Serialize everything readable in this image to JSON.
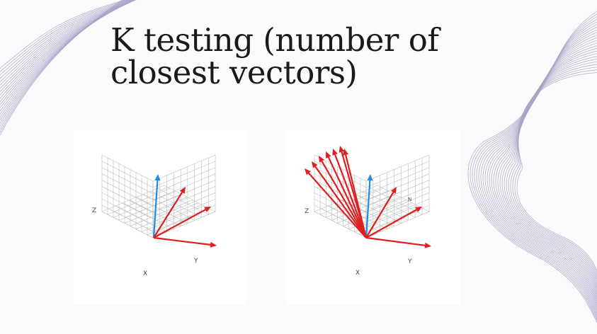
{
  "slide": {
    "title_line1": "K testing (number of",
    "title_line2": "closest vectors)"
  },
  "figures": [
    {
      "name": "left-3d-vectors",
      "axis_labels": {
        "z": "Z",
        "x": "X",
        "y": "Y"
      },
      "blue_vector_count": 1,
      "red_vector_count": 3
    },
    {
      "name": "right-3d-vectors",
      "axis_labels": {
        "z": "Z",
        "x": "X",
        "y": "Y",
        "n": "N"
      },
      "blue_vector_count": 1,
      "red_vector_count": 9
    }
  ],
  "colors": {
    "background": "#fbfafc",
    "deco_lines": "#a9a3c8",
    "grid": "#bdbdbd",
    "red_vector": "#dd1f1f",
    "blue_vector": "#1f8de0",
    "title_text": "#1a1a1a"
  }
}
